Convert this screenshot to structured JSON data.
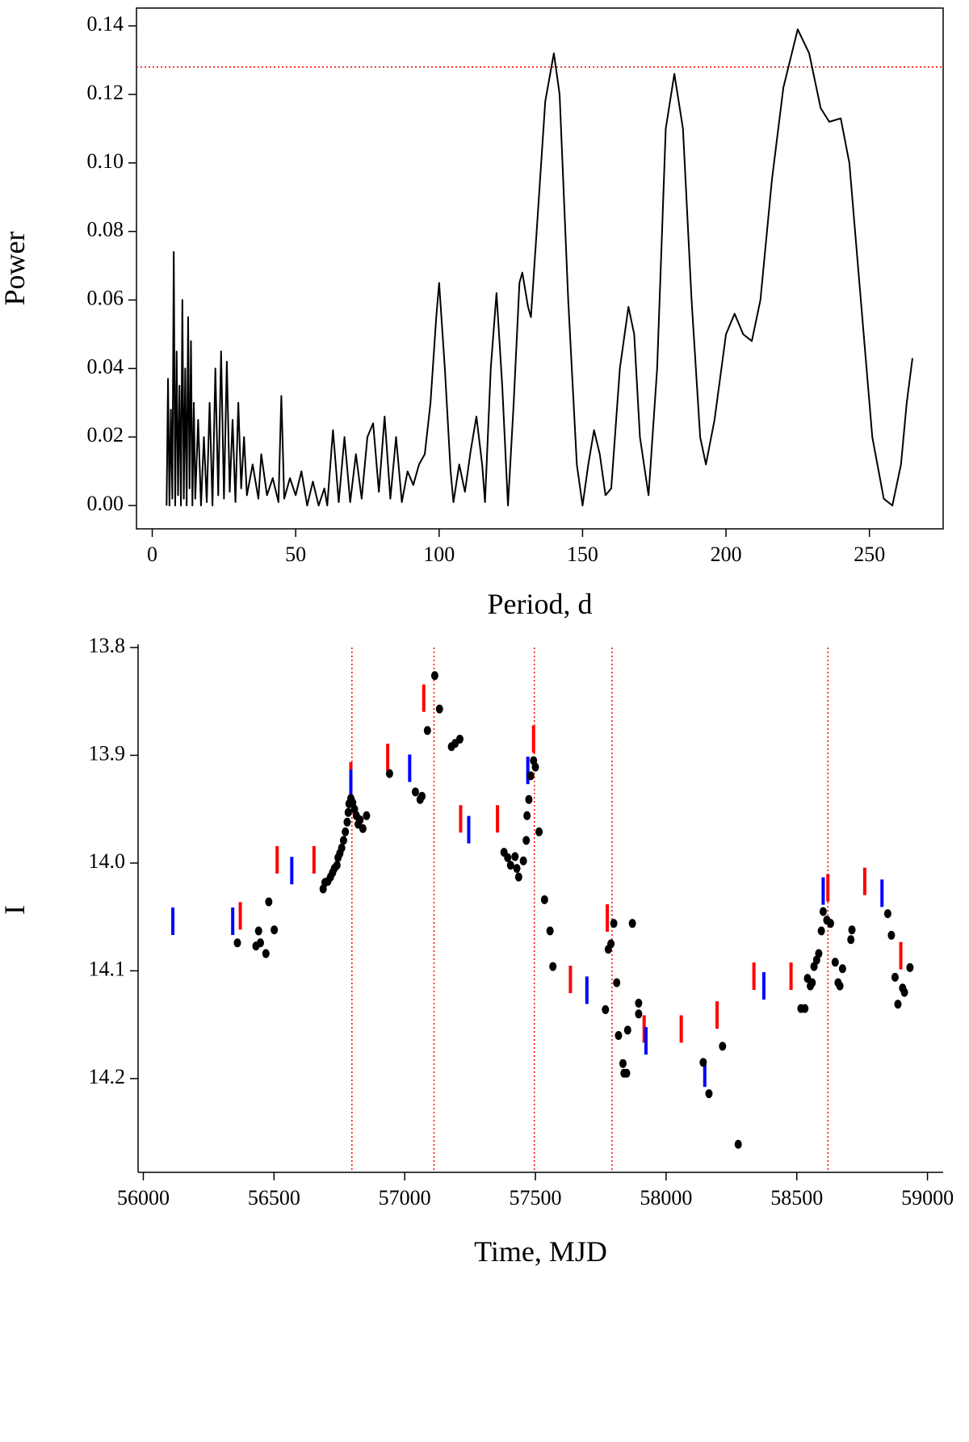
{
  "chart_data": [
    {
      "type": "line",
      "xlabel": "Period, d",
      "ylabel": "Power",
      "color": "black",
      "xlim": [
        -5.5,
        275.7
      ],
      "ylim": [
        -0.0068,
        0.1452
      ],
      "xticks": [
        0,
        50,
        100,
        150,
        200,
        250
      ],
      "yticks": [
        {
          "value": 0,
          "label": "0.00"
        },
        0.02,
        0.04,
        0.06,
        0.08,
        {
          "value": 0.1,
          "label": "0.10"
        },
        0.12,
        0.14
      ],
      "hline": {
        "value": 0.128,
        "color": "red",
        "style": "dotted"
      },
      "x": [
        5,
        5.5,
        6,
        6.5,
        7,
        7.5,
        8,
        8.5,
        9,
        9.5,
        10,
        10.5,
        11,
        11.5,
        12,
        12.5,
        13,
        13.5,
        14,
        14.5,
        15,
        16,
        17,
        18,
        19,
        20,
        21,
        22,
        23,
        24,
        25,
        26,
        27,
        28,
        29,
        30,
        31,
        32,
        33,
        35,
        37,
        38,
        40,
        42,
        44,
        45,
        46,
        48,
        50,
        52,
        54,
        56,
        58,
        60,
        61,
        63,
        65,
        67,
        69,
        71,
        73,
        75,
        77,
        79,
        81,
        83,
        85,
        87,
        89,
        91,
        93,
        95,
        97,
        99,
        100,
        102,
        104,
        105,
        107,
        109,
        111,
        113,
        115,
        116,
        118,
        120,
        122,
        124,
        126,
        128,
        129,
        131,
        132,
        134,
        137,
        140,
        142,
        145,
        148,
        150,
        152,
        154,
        156,
        158,
        160,
        163,
        166,
        168,
        170,
        173,
        176,
        179,
        182,
        185,
        188,
        191,
        193,
        196,
        200,
        203,
        206,
        209,
        212,
        216,
        220,
        225,
        229,
        233,
        236,
        240,
        243,
        247,
        251,
        255,
        258,
        261,
        263,
        265
      ],
      "values": [
        0,
        0.037,
        0,
        0.028,
        0.002,
        0.074,
        0,
        0.045,
        0.003,
        0.035,
        0,
        0.06,
        0.002,
        0.04,
        0,
        0.055,
        0.005,
        0.048,
        0,
        0.03,
        0.002,
        0.025,
        0,
        0.02,
        0.001,
        0.03,
        0,
        0.04,
        0.003,
        0.045,
        0.002,
        0.042,
        0.004,
        0.025,
        0.001,
        0.03,
        0.005,
        0.02,
        0.003,
        0.012,
        0.002,
        0.015,
        0.003,
        0.008,
        0.001,
        0.032,
        0.002,
        0.008,
        0.003,
        0.01,
        0,
        0.007,
        0,
        0.005,
        0,
        0.022,
        0.001,
        0.02,
        0.001,
        0.015,
        0.002,
        0.02,
        0.024,
        0.004,
        0.026,
        0.002,
        0.02,
        0.001,
        0.01,
        0.006,
        0.012,
        0.015,
        0.03,
        0.055,
        0.065,
        0.04,
        0.01,
        0.001,
        0.012,
        0.004,
        0.016,
        0.026,
        0.012,
        0.001,
        0.04,
        0.062,
        0.035,
        0,
        0.03,
        0.065,
        0.068,
        0.058,
        0.055,
        0.08,
        0.118,
        0.132,
        0.12,
        0.06,
        0.012,
        0,
        0.012,
        0.022,
        0.015,
        0.003,
        0.005,
        0.04,
        0.058,
        0.05,
        0.02,
        0.003,
        0.04,
        0.11,
        0.126,
        0.11,
        0.06,
        0.02,
        0.012,
        0.025,
        0.05,
        0.056,
        0.05,
        0.048,
        0.06,
        0.095,
        0.122,
        0.139,
        0.132,
        0.116,
        0.112,
        0.113,
        0.1,
        0.06,
        0.02,
        0.002,
        0,
        0.012,
        0.03,
        0.043
      ]
    },
    {
      "type": "scatter",
      "xlabel": "Time, MJD",
      "ylabel": "I",
      "y_inverted": true,
      "xlim": [
        55980,
        59060
      ],
      "ylim": [
        13.8,
        14.287
      ],
      "xticks": [
        56000,
        56500,
        57000,
        57500,
        58000,
        58500,
        59000
      ],
      "yticks": [
        13.8,
        13.9,
        {
          "value": 14,
          "label": "14.0"
        },
        14.1,
        14.2
      ],
      "vlines": {
        "x": [
          56798,
          57112,
          57496,
          57793,
          58619
        ],
        "color": "red",
        "style": "dotted"
      },
      "series": [
        {
          "color": "red",
          "marker": "bar",
          "x": [
            56371,
            56512,
            56653,
            56794,
            56935,
            57073,
            57214,
            57355,
            57493,
            57634,
            57775,
            57916,
            58058,
            58195,
            58336,
            58478,
            58619,
            58760,
            58898
          ],
          "values": [
            14.049,
            13.997,
            13.997,
            13.919,
            13.902,
            13.847,
            13.959,
            13.959,
            13.885,
            14.108,
            14.051,
            14.154,
            14.154,
            14.141,
            14.105,
            14.105,
            14.023,
            14.017,
            14.086
          ]
        },
        {
          "color": "blue",
          "marker": "bar",
          "x": [
            56113,
            56342,
            56568,
            56794,
            57019,
            57245,
            57471,
            57697,
            57923,
            58148,
            58374,
            58601,
            58826
          ],
          "values": [
            14.054,
            14.054,
            14.007,
            13.926,
            13.912,
            13.969,
            13.914,
            14.118,
            14.165,
            14.195,
            14.114,
            14.026,
            14.028
          ]
        },
        {
          "color": "black",
          "marker": "dot",
          "x": [
            56360,
            56441,
            56431,
            56448,
            56469,
            56480,
            56501,
            56688,
            56695,
            56706,
            56716,
            56724,
            56731,
            56741,
            56745,
            56752,
            56759,
            56766,
            56773,
            56780,
            56784,
            56787,
            56794,
            56801,
            56808,
            56815,
            56822,
            56829,
            56840,
            56854,
            56942,
            57041,
            57059,
            57066,
            57087,
            57115,
            57133,
            57179,
            57193,
            57211,
            57380,
            57394,
            57405,
            57422,
            57429,
            57436,
            57454,
            57465,
            57468,
            57475,
            57482,
            57493,
            57500,
            57514,
            57535,
            57556,
            57567,
            57768,
            57779,
            57789,
            57800,
            57811,
            57818,
            57835,
            57839,
            57849,
            57853,
            57871,
            57895,
            57895,
            58142,
            58164,
            58216,
            58276,
            58516,
            58531,
            58541,
            58552,
            58559,
            58566,
            58576,
            58584,
            58594,
            58601,
            58615,
            58629,
            58647,
            58658,
            58665,
            58675,
            58711,
            58707,
            58848,
            58862,
            58876,
            58887,
            58905,
            58912,
            58933
          ],
          "values": [
            14.074,
            14.063,
            14.077,
            14.074,
            14.084,
            14.036,
            14.062,
            14.024,
            14.018,
            14.017,
            14.013,
            14.009,
            14.005,
            14.002,
            13.995,
            13.991,
            13.986,
            13.979,
            13.971,
            13.962,
            13.953,
            13.945,
            13.94,
            13.944,
            13.95,
            13.956,
            13.964,
            13.96,
            13.968,
            13.956,
            13.917,
            13.934,
            13.941,
            13.938,
            13.877,
            13.826,
            13.857,
            13.892,
            13.889,
            13.885,
            13.99,
            13.995,
            14.002,
            13.994,
            14.005,
            14.013,
            13.998,
            13.979,
            13.956,
            13.941,
            13.919,
            13.905,
            13.911,
            13.971,
            14.034,
            14.063,
            14.096,
            14.136,
            14.08,
            14.075,
            14.056,
            14.111,
            14.16,
            14.186,
            14.195,
            14.195,
            14.155,
            14.056,
            14.13,
            14.14,
            14.185,
            14.214,
            14.17,
            14.261,
            14.135,
            14.135,
            14.107,
            14.114,
            14.111,
            14.096,
            14.09,
            14.084,
            14.063,
            14.045,
            14.053,
            14.056,
            14.092,
            14.111,
            14.114,
            14.098,
            14.062,
            14.071,
            14.047,
            14.067,
            14.106,
            14.131,
            14.116,
            14.12,
            14.097
          ]
        }
      ]
    }
  ]
}
